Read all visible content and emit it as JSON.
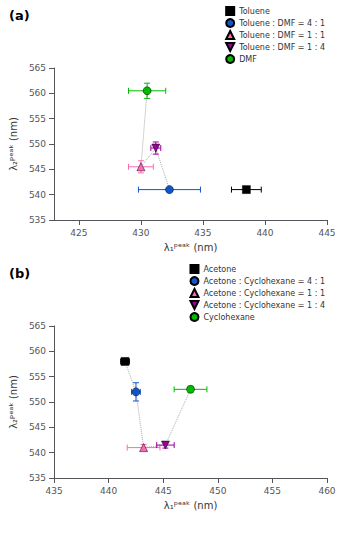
{
  "chart_data": [
    {
      "type": "scatter",
      "title": "(a)",
      "xlabel": "λ₁ᵖᵉᵃᵏ (nm)",
      "ylabel": "λ₂ᵖᵉᵃᵏ (nm)",
      "xlim": [
        423,
        445
      ],
      "ylim": [
        535,
        565
      ],
      "xticks": [
        425,
        430,
        435,
        440,
        445
      ],
      "yticks": [
        535,
        540,
        545,
        550,
        555,
        560,
        565
      ],
      "grid": false,
      "legend": "upper right",
      "series": [
        {
          "type": "line",
          "color": "#aaaaaa",
          "line_style": "dotted",
          "x": [
            432.3,
            431.2,
            430.0,
            430.5
          ],
          "values": [
            541.0,
            549.2,
            545.5,
            560.5
          ]
        },
        {
          "name": "Toluene",
          "color": "#000000",
          "marker": "square",
          "x": [
            438.5
          ],
          "values": [
            541.0
          ],
          "xerr": [
            1.2
          ],
          "yerr": [
            0.4
          ]
        },
        {
          "name": "Toluene : DMF = 4 : 1",
          "color": "#1155cc",
          "marker": "circle",
          "x": [
            432.3
          ],
          "values": [
            541.0
          ],
          "xerr": [
            2.5
          ],
          "yerr": [
            0.4
          ]
        },
        {
          "name": "Toluene : DMF = 1 : 1",
          "color": "#ff69b4",
          "marker": "triangle-up",
          "x": [
            430.0
          ],
          "values": [
            545.5
          ],
          "xerr": [
            1.0
          ],
          "yerr": [
            1.2
          ]
        },
        {
          "name": "Toluene : DMF = 1 : 4",
          "color": "#990099",
          "marker": "triangle-down",
          "x": [
            431.2
          ],
          "values": [
            549.2
          ],
          "xerr": [
            0.4
          ],
          "yerr": [
            1.2
          ]
        },
        {
          "name": "DMF",
          "color": "#00bb00",
          "marker": "circle",
          "x": [
            430.5
          ],
          "values": [
            560.5
          ],
          "xerr": [
            1.5
          ],
          "yerr": [
            1.5
          ]
        }
      ]
    },
    {
      "type": "scatter",
      "title": "(b)",
      "xlabel": "λ₁ᵖᵉᵃᵏ (nm)",
      "ylabel": "λ₂ᵖᵉᵃᵏ (nm)",
      "xlim": [
        435,
        460
      ],
      "ylim": [
        535,
        565
      ],
      "xticks": [
        435,
        440,
        445,
        450,
        455,
        460
      ],
      "yticks": [
        535,
        540,
        545,
        550,
        555,
        560,
        565
      ],
      "grid": false,
      "legend": "upper right",
      "series": [
        {
          "type": "line",
          "color": "#aaaaaa",
          "line_style": "dotted",
          "x": [
            441.5,
            442.5,
            443.2,
            445.2,
            447.5
          ],
          "values": [
            558.0,
            552.0,
            541.0,
            541.5,
            552.5
          ]
        },
        {
          "name": "Acetone",
          "color": "#000000",
          "marker": "square",
          "x": [
            441.5
          ],
          "values": [
            558.0
          ],
          "xerr": [
            0.4
          ],
          "yerr": [
            0.6
          ]
        },
        {
          "name": "Acetone : Cyclohexane = 4 : 1",
          "color": "#1155cc",
          "marker": "circle",
          "x": [
            442.5
          ],
          "values": [
            552.0
          ],
          "xerr": [
            0.4
          ],
          "yerr": [
            1.8
          ]
        },
        {
          "name": "Acetone : Cyclohexane = 1 : 1",
          "color": "#ff69b4",
          "marker": "triangle-up",
          "x": [
            443.2
          ],
          "values": [
            541.0
          ],
          "xerr": [
            1.5
          ],
          "yerr": [
            0.6
          ]
        },
        {
          "name": "Acetone : Cyclohexane = 1 : 4",
          "color": "#990099",
          "marker": "triangle-down",
          "x": [
            445.2
          ],
          "values": [
            541.5
          ],
          "xerr": [
            0.8
          ],
          "yerr": [
            0.6
          ]
        },
        {
          "name": "Cyclohexane",
          "color": "#00bb00",
          "marker": "circle",
          "x": [
            447.5
          ],
          "values": [
            552.5
          ],
          "xerr": [
            1.5
          ],
          "yerr": [
            0.6
          ]
        }
      ]
    }
  ]
}
